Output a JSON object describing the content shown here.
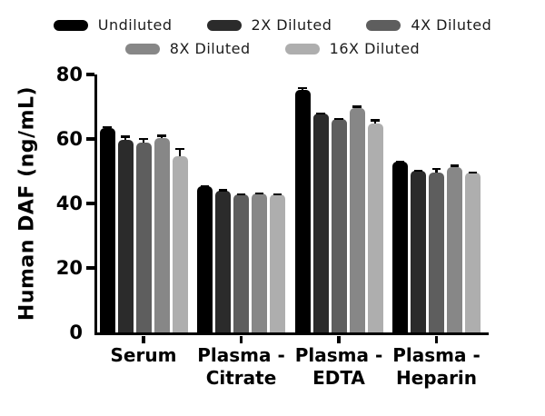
{
  "chart_data": {
    "type": "bar",
    "title": "",
    "ylabel": "Human DAF (ng/mL)",
    "xlabel": "",
    "ylim": [
      0,
      80
    ],
    "yticks": [
      0,
      20,
      40,
      60,
      80
    ],
    "grid": false,
    "legend_position": "top",
    "error_bars": true,
    "axis_color": "#000000",
    "categories": [
      "Serum",
      "Plasma - Citrate",
      "Plasma - EDTA",
      "Plasma - Heparin"
    ],
    "category_label_lines": [
      [
        "Serum"
      ],
      [
        "Plasma -",
        "Citrate"
      ],
      [
        "Plasma -",
        "EDTA"
      ],
      [
        "Plasma -",
        "Heparin"
      ]
    ],
    "series": [
      {
        "name": "Undiluted",
        "color": "#000000",
        "values": [
          63.5,
          45.3,
          75.3,
          52.9
        ],
        "errors": [
          0.5,
          0.3,
          0.8,
          0.3
        ]
      },
      {
        "name": "2X Diluted",
        "color": "#2b2b2b",
        "values": [
          59.6,
          44.0,
          67.8,
          50.1
        ],
        "errors": [
          1.5,
          0.4,
          0.4,
          0.4
        ]
      },
      {
        "name": "4X Diluted",
        "color": "#5e5e5e",
        "values": [
          59.0,
          42.8,
          66.1,
          49.6
        ],
        "errors": [
          1.3,
          0.4,
          0.4,
          1.5
        ]
      },
      {
        "name": "8X Diluted",
        "color": "#878787",
        "values": [
          60.4,
          43.0,
          69.6,
          51.2
        ],
        "errors": [
          0.9,
          0.5,
          0.7,
          0.8
        ]
      },
      {
        "name": "16X Diluted",
        "color": "#aeaeae",
        "values": [
          54.6,
          42.8,
          64.9,
          49.6
        ],
        "errors": [
          2.6,
          0.4,
          1.2,
          0.4
        ]
      }
    ],
    "legend_rows": [
      [
        0,
        1,
        2
      ],
      [
        3,
        4
      ]
    ]
  }
}
